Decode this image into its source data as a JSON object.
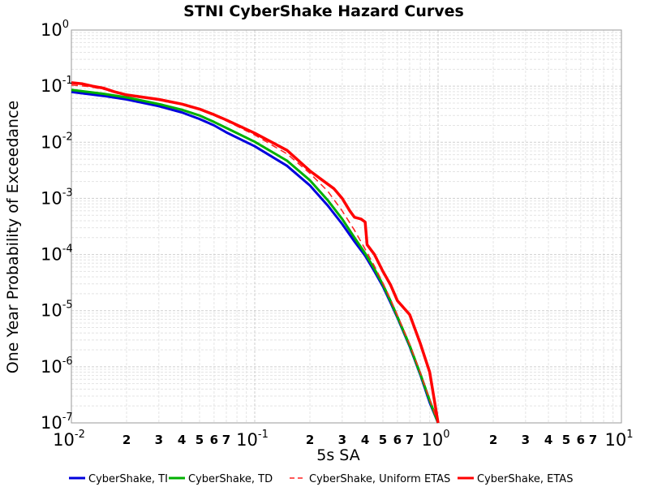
{
  "chart_data": {
    "type": "line",
    "title": "STNI CyberShake Hazard Curves",
    "xlabel": "5s SA",
    "ylabel": "One Year Probability of Exceedance",
    "x_scale": "log",
    "y_scale": "log",
    "xlim": [
      0.01,
      10
    ],
    "ylim": [
      1e-07,
      1
    ],
    "grid": true,
    "legend_position": "bottom",
    "x_major_ticks": [
      {
        "base": "10",
        "exp": "-2"
      },
      {
        "base": "10",
        "exp": "-1"
      },
      {
        "base": "10",
        "exp": "0"
      },
      {
        "base": "10",
        "exp": "1"
      }
    ],
    "y_major_ticks": [
      {
        "base": "10",
        "exp": "0"
      },
      {
        "base": "10",
        "exp": "-1"
      },
      {
        "base": "10",
        "exp": "-2"
      },
      {
        "base": "10",
        "exp": "-3"
      },
      {
        "base": "10",
        "exp": "-4"
      },
      {
        "base": "10",
        "exp": "-5"
      },
      {
        "base": "10",
        "exp": "-6"
      },
      {
        "base": "10",
        "exp": "-7"
      }
    ],
    "x_minor_tick_labels": [
      "2",
      "3",
      "4",
      "5",
      "6",
      "7"
    ],
    "series": [
      {
        "name": "CyberShake, TI",
        "color": "#0000dd",
        "dash": "solid",
        "width": 3,
        "x": [
          0.01,
          0.015,
          0.02,
          0.03,
          0.04,
          0.05,
          0.06,
          0.07,
          0.1,
          0.15,
          0.2,
          0.25,
          0.3,
          0.35,
          0.4,
          0.45,
          0.5,
          0.55,
          0.6,
          0.7,
          0.8,
          0.9,
          1.0
        ],
        "y": [
          0.079,
          0.067,
          0.058,
          0.044,
          0.034,
          0.026,
          0.02,
          0.015,
          0.0085,
          0.0038,
          0.0017,
          0.00075,
          0.00035,
          0.00017,
          9.5e-05,
          5e-05,
          2.7e-05,
          1.4e-05,
          7.5e-06,
          2.3e-06,
          7.2e-07,
          2.3e-07,
          1e-07
        ]
      },
      {
        "name": "CyberShake, TD",
        "color": "#00b000",
        "dash": "solid",
        "width": 3,
        "x": [
          0.01,
          0.015,
          0.02,
          0.03,
          0.04,
          0.05,
          0.06,
          0.07,
          0.1,
          0.15,
          0.2,
          0.25,
          0.3,
          0.35,
          0.4,
          0.45,
          0.5,
          0.55,
          0.6,
          0.7,
          0.8,
          0.9,
          1.0
        ],
        "y": [
          0.086,
          0.073,
          0.063,
          0.048,
          0.038,
          0.03,
          0.023,
          0.018,
          0.0102,
          0.0047,
          0.0021,
          0.00093,
          0.00043,
          0.0002,
          0.000105,
          5.5e-05,
          2.9e-05,
          1.5e-05,
          7.8e-06,
          2.4e-06,
          7.5e-07,
          2.5e-07,
          1e-07
        ]
      },
      {
        "name": "CyberShake, Uniform ETAS",
        "color": "#ff2020",
        "dash": "dashed",
        "width": 1.5,
        "x": [
          0.01,
          0.0125,
          0.015,
          0.02,
          0.03,
          0.04,
          0.05,
          0.06,
          0.07,
          0.1,
          0.15,
          0.2,
          0.25,
          0.3,
          0.35,
          0.4,
          0.45,
          0.5,
          0.55,
          0.6,
          0.7,
          0.8,
          0.9,
          1.0
        ],
        "y": [
          0.105,
          0.098,
          0.088,
          0.07,
          0.057,
          0.047,
          0.038,
          0.03,
          0.024,
          0.0135,
          0.0062,
          0.0028,
          0.00135,
          0.0006,
          0.00027,
          0.000125,
          6.2e-05,
          3.1e-05,
          1.6e-05,
          8.2e-06,
          2.5e-06,
          7.8e-07,
          2.6e-07,
          1e-07
        ]
      },
      {
        "name": "CyberShake, ETAS",
        "color": "#ff0000",
        "dash": "solid",
        "width": 3.5,
        "x": [
          0.01,
          0.0115,
          0.013,
          0.015,
          0.017,
          0.02,
          0.03,
          0.04,
          0.05,
          0.06,
          0.07,
          0.1,
          0.15,
          0.2,
          0.23,
          0.27,
          0.3,
          0.33,
          0.35,
          0.38,
          0.4,
          0.41,
          0.45,
          0.5,
          0.55,
          0.6,
          0.7,
          0.8,
          0.9,
          1.0
        ],
        "y": [
          0.115,
          0.11,
          0.1,
          0.092,
          0.08,
          0.07,
          0.058,
          0.048,
          0.039,
          0.031,
          0.025,
          0.0145,
          0.0072,
          0.0031,
          0.0022,
          0.0015,
          0.001,
          0.0006,
          0.00046,
          0.00043,
          0.00038,
          0.00015,
          0.0001,
          5e-05,
          2.9e-05,
          1.5e-05,
          8.5e-06,
          2.6e-06,
          8e-07,
          1e-07
        ]
      }
    ]
  }
}
